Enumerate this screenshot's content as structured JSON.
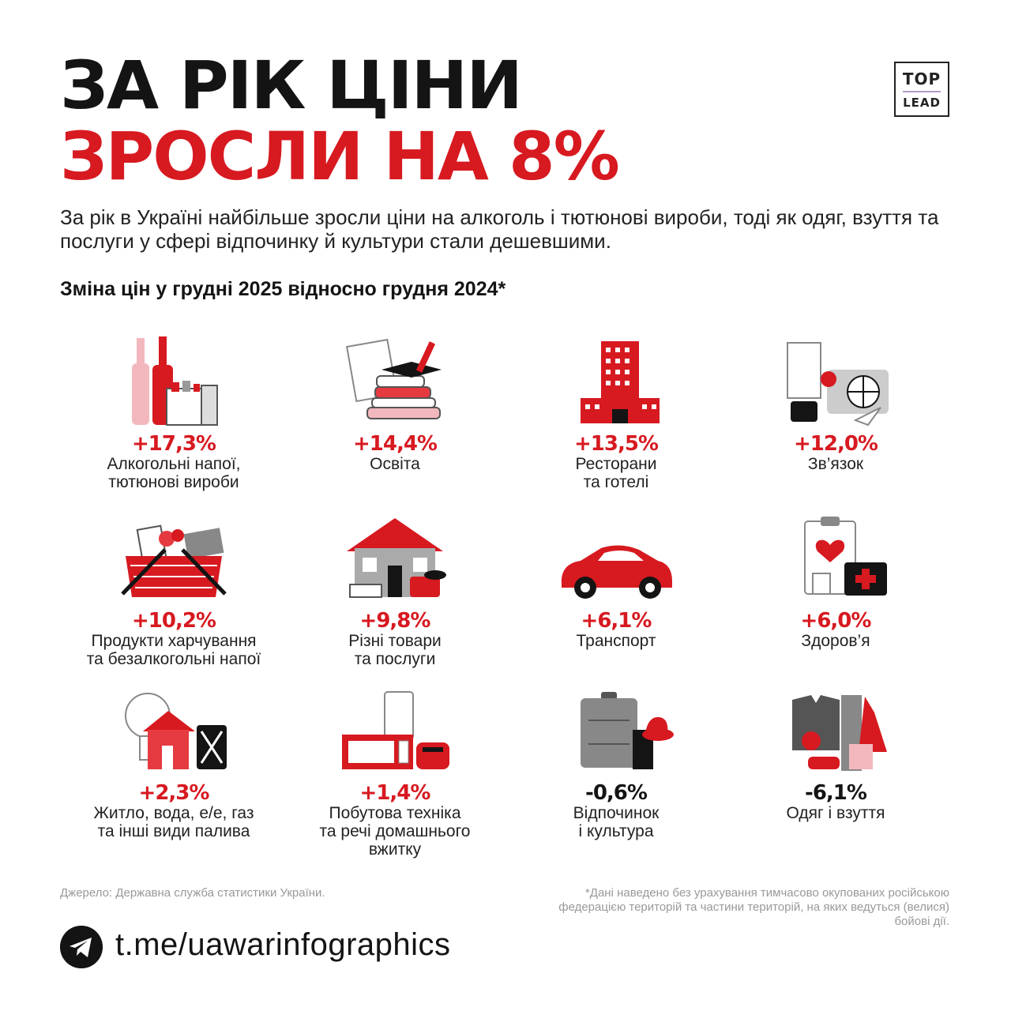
{
  "header": {
    "title_line1": "ЗА РІК ЦІНИ",
    "title_line2": "ЗРОСЛИ НА 8%",
    "logo_top": "TOP",
    "logo_bottom": "LEAD"
  },
  "intro": "За рік в Україні найбільше зросли ціни на алкоголь і тютюнові вироби, тоді як одяг, взуття та послуги у сфері відпочинку й культури стали дешевшими.",
  "subtitle": "Зміна цін у грудні 2025 відносно грудня 2024*",
  "colors": {
    "accent": "#d71920",
    "dark": "#141414",
    "muted": "#999999"
  },
  "categories": [
    {
      "value": "+17,3%",
      "label": "Алкогольні напої,\nтютюнові вироби",
      "icon": "alcohol-tobacco-icon"
    },
    {
      "value": "+14,4%",
      "label": "Освіта",
      "icon": "education-icon"
    },
    {
      "value": "+13,5%",
      "label": "Ресторани\nта готелі",
      "icon": "hotel-icon"
    },
    {
      "value": "+12,0%",
      "label": "Зв’язок",
      "icon": "communication-icon"
    },
    {
      "value": "+10,2%",
      "label": "Продукти харчування\nта безалкогольні напої",
      "icon": "grocery-basket-icon"
    },
    {
      "value": "+9,8%",
      "label": "Різні товари\nта послуги",
      "icon": "house-goods-icon"
    },
    {
      "value": "+6,1%",
      "label": "Транспорт",
      "icon": "car-icon"
    },
    {
      "value": "+6,0%",
      "label": "Здоров’я",
      "icon": "health-icon"
    },
    {
      "value": "+2,3%",
      "label": "Житло, вода, е/е, газ\nта інші види палива",
      "icon": "housing-utilities-icon"
    },
    {
      "value": "+1,4%",
      "label": "Побутова техніка\nта речі домашнього\nвжитку",
      "icon": "appliances-icon"
    },
    {
      "value": "-0,6%",
      "label": "Відпочинок\nі культура",
      "icon": "travel-icon"
    },
    {
      "value": "-6,1%",
      "label": "Одяг і взуття",
      "icon": "clothing-icon"
    }
  ],
  "footer": {
    "source": "Джерело: Державна служба статистики України.",
    "note": "*Дані наведено без урахування тимчасово окупованих російською федерацією територій та частини територій, на яких ведуться (велися) бойові дії.",
    "telegram": "t.me/uawarinfographics"
  }
}
